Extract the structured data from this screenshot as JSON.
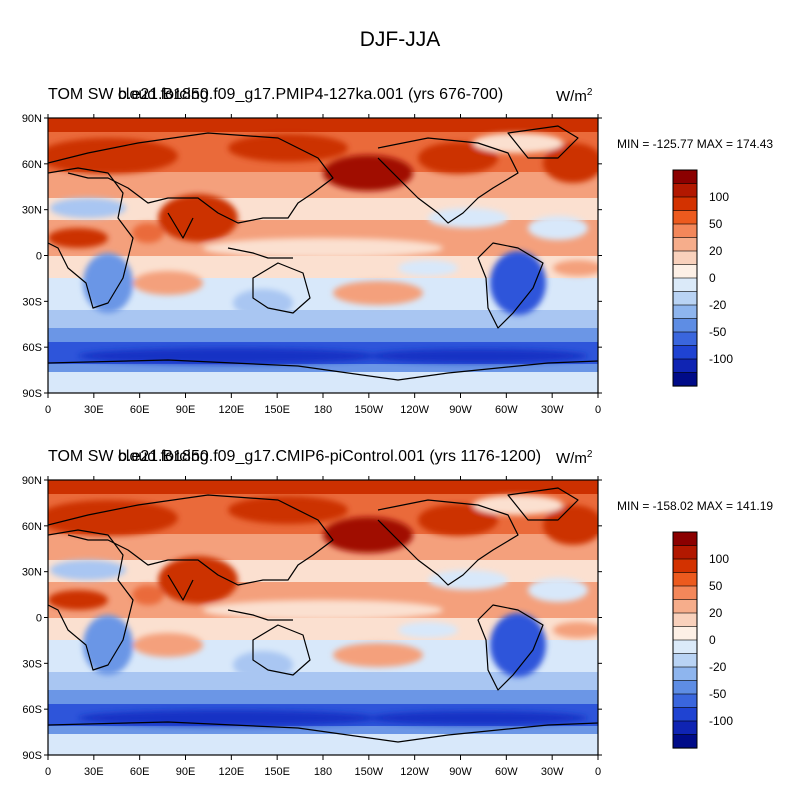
{
  "figure": {
    "title": "DJF-JJA"
  },
  "panels": [
    {
      "title_a": "TOM SW cloud forcing",
      "title_b": "b.e21.B1850.f09_g17.PMIP4-127ka.001 (yrs 676-700)",
      "units_base": "W/m",
      "units_exp": "2",
      "minmax": "MIN = -125.77 MAX = 174.43"
    },
    {
      "title_a": "TOM SW cloud forcing",
      "title_b": "b.e21.B1850.f09_g17.CMIP6-piControl.001 (yrs 1176-1200)",
      "units_base": "W/m",
      "units_exp": "2",
      "minmax": "MIN = -158.02 MAX = 141.19"
    }
  ],
  "axes": {
    "lat_ticks": [
      "90N",
      "60N",
      "30N",
      "0",
      "30S",
      "60S",
      "90S"
    ],
    "lon_ticks": [
      "0",
      "30E",
      "60E",
      "90E",
      "120E",
      "150E",
      "180",
      "150W",
      "120W",
      "90W",
      "60W",
      "30W",
      "0"
    ]
  },
  "colorbar": {
    "labels": [
      "100",
      "50",
      "20",
      "0",
      "-20",
      "-50",
      "-100"
    ],
    "colors": [
      "#8b0000",
      "#b21800",
      "#d33200",
      "#ec5a1e",
      "#f3875a",
      "#f6ad8b",
      "#f9d1bc",
      "#fdf0e6",
      "#dbeaf9",
      "#b9d3f4",
      "#8eb5ee",
      "#5e8de4",
      "#3a66dd",
      "#1f43d2",
      "#0f24b3",
      "#000b88"
    ]
  },
  "palette": {
    "dark_red": "#a01000",
    "red": "#cc3000",
    "orange": "#ea6a3a",
    "salmon": "#f4a07c",
    "pale": "#fbe0d0",
    "pale_blue": "#d8e8fa",
    "light_blue": "#a9c6f2",
    "mid_blue": "#6b96e6",
    "blue": "#2e55da",
    "dark_blue": "#1632c4"
  }
}
